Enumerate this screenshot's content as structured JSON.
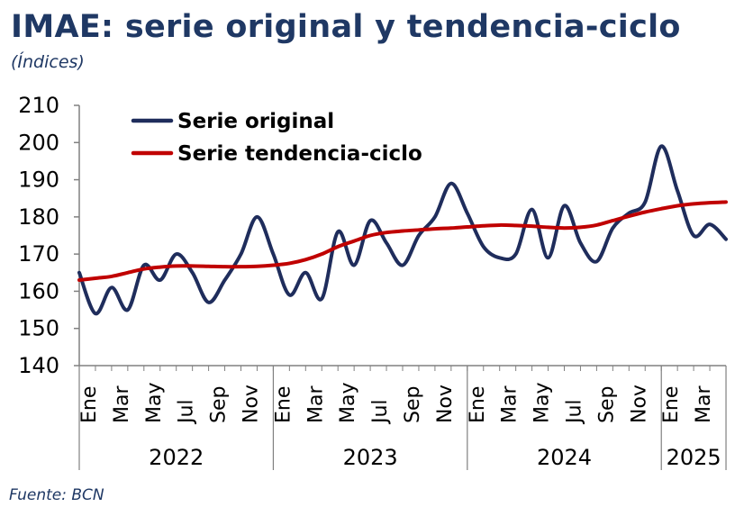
{
  "title": "IMAE: serie original y tendencia-ciclo",
  "subtitle": "(Índices)",
  "source": "Fuente: BCN",
  "colors": {
    "title": "#1f3864",
    "original": "#1f2d5c",
    "trend": "#c00000",
    "axis": "#808080"
  },
  "chart_data": {
    "type": "line",
    "ylim": [
      140,
      210
    ],
    "yticks": [
      140,
      150,
      160,
      170,
      180,
      190,
      200,
      210
    ],
    "grid": false,
    "legend_position": "top-left",
    "month_labels": [
      "Ene",
      "Mar",
      "May",
      "Jul",
      "Sep",
      "Nov",
      "Ene",
      "Mar",
      "May",
      "Jul",
      "Sep",
      "Nov",
      "Ene",
      "Mar",
      "May",
      "Jul",
      "Sep",
      "Nov",
      "Ene",
      "Mar"
    ],
    "years": [
      "2022",
      "2023",
      "2024",
      "2025"
    ],
    "year_spans": [
      [
        0,
        12
      ],
      [
        12,
        24
      ],
      [
        24,
        36
      ],
      [
        36,
        40
      ]
    ],
    "series": [
      {
        "name": "Serie original",
        "color": "#1f2d5c",
        "values": [
          165,
          154,
          161,
          155,
          167,
          163,
          170,
          165,
          157,
          163,
          170,
          180,
          170,
          159,
          165,
          158,
          176,
          167,
          179,
          173,
          167,
          175,
          180,
          189,
          181,
          172,
          169,
          170,
          182,
          169,
          183,
          173,
          168,
          177,
          181,
          184,
          199,
          187,
          175,
          178,
          174
        ]
      },
      {
        "name": "Serie tendencia-ciclo",
        "color": "#c00000",
        "values": [
          163,
          163.5,
          164,
          165,
          166,
          166.5,
          166.8,
          166.8,
          166.7,
          166.6,
          166.6,
          166.7,
          167,
          167.5,
          168.5,
          170,
          172,
          173.5,
          175,
          175.8,
          176.2,
          176.5,
          176.8,
          177,
          177.3,
          177.6,
          177.8,
          177.7,
          177.5,
          177.2,
          177,
          177.2,
          177.8,
          179,
          180.2,
          181.3,
          182.2,
          183,
          183.5,
          183.8,
          184
        ]
      }
    ]
  }
}
